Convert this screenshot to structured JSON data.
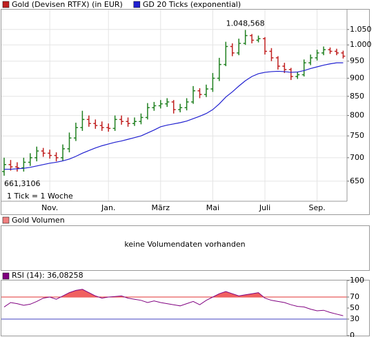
{
  "chart_data": [
    {
      "type": "ohlc",
      "categories": [
        null,
        null,
        null,
        null,
        null,
        null,
        null,
        "Nov.",
        null,
        null,
        null,
        null,
        null,
        null,
        null,
        null,
        "Jan.",
        null,
        null,
        null,
        null,
        null,
        null,
        null,
        "März",
        null,
        null,
        null,
        null,
        null,
        null,
        null,
        "Mai",
        null,
        null,
        null,
        null,
        null,
        null,
        null,
        "Juli",
        null,
        null,
        null,
        null,
        null,
        null,
        null,
        "Sep.",
        null,
        null,
        null,
        null
      ],
      "series": [
        {
          "name": "Gold (Devisen RTFX) (in EUR)",
          "color": "#c02020",
          "up_color": "#208020",
          "down_color": "#c02020",
          "open": [
            670,
            685,
            680,
            678,
            690,
            700,
            715,
            710,
            705,
            700,
            720,
            745,
            770,
            790,
            780,
            775,
            770,
            768,
            790,
            785,
            780,
            785,
            795,
            820,
            825,
            830,
            835,
            815,
            820,
            835,
            865,
            855,
            870,
            900,
            940,
            995,
            975,
            1005,
            1030,
            1015,
            1020,
            980,
            960,
            935,
            925,
            905,
            910,
            945,
            960,
            975,
            985,
            980,
            975
          ],
          "high": [
            700,
            695,
            690,
            700,
            710,
            725,
            722,
            718,
            712,
            730,
            758,
            782,
            812,
            800,
            790,
            785,
            780,
            800,
            800,
            795,
            795,
            805,
            832,
            835,
            840,
            845,
            840,
            830,
            845,
            878,
            872,
            882,
            915,
            960,
            1010,
            1005,
            1020,
            1048.568,
            1035,
            1030,
            1025,
            990,
            965,
            945,
            930,
            918,
            955,
            970,
            985,
            995,
            992,
            988,
            982
          ],
          "low": [
            661.3106,
            672,
            670,
            670,
            682,
            692,
            702,
            698,
            692,
            693,
            712,
            738,
            762,
            772,
            767,
            762,
            760,
            762,
            777,
            772,
            774,
            778,
            790,
            812,
            818,
            822,
            805,
            808,
            813,
            830,
            845,
            848,
            862,
            892,
            935,
            965,
            968,
            1000,
            1005,
            1008,
            970,
            950,
            925,
            915,
            895,
            898,
            905,
            938,
            952,
            968,
            972,
            968,
            958
          ],
          "close": [
            685,
            680,
            678,
            690,
            700,
            715,
            710,
            705,
            700,
            720,
            745,
            770,
            790,
            780,
            775,
            770,
            768,
            790,
            785,
            780,
            785,
            795,
            820,
            825,
            830,
            835,
            815,
            820,
            835,
            865,
            855,
            870,
            900,
            940,
            995,
            975,
            1005,
            1030,
            1015,
            1020,
            980,
            960,
            935,
            925,
            905,
            910,
            945,
            960,
            975,
            985,
            980,
            975,
            965
          ]
        },
        {
          "name": "GD 20 Ticks (exponential)",
          "color": "#2020d0",
          "type": "line",
          "values": [
            675,
            675,
            676,
            677,
            679,
            682,
            685,
            688,
            690,
            693,
            697,
            703,
            710,
            716,
            722,
            727,
            731,
            735,
            738,
            742,
            746,
            750,
            757,
            764,
            772,
            776,
            779,
            782,
            786,
            792,
            798,
            805,
            815,
            830,
            848,
            862,
            878,
            893,
            905,
            913,
            917,
            919,
            920,
            919,
            917,
            918,
            922,
            928,
            933,
            938,
            942,
            945,
            945
          ]
        }
      ],
      "high_label": "1.048,568",
      "low_label": "661,3106",
      "note": "1 Tick = 1 Woche",
      "log_scale": true,
      "grid": true,
      "ylim": [
        610,
        1118
      ],
      "yticks": [
        650,
        700,
        750,
        800,
        850,
        900,
        950,
        {
          "value": 1000,
          "label": "1.000"
        },
        {
          "value": 1050,
          "label": "1.050"
        }
      ]
    },
    {
      "type": "bar",
      "title": "Gold Volumen",
      "color": "#f08080",
      "message": "keine Volumendaten vorhanden"
    },
    {
      "type": "line",
      "series": [
        {
          "name": "RSI (14): 36,08258",
          "color": "#800080",
          "fill_color": "#f06060",
          "values": [
            52,
            60,
            58,
            55,
            57,
            62,
            68,
            70,
            66,
            72,
            78,
            82,
            84,
            78,
            72,
            68,
            70,
            71,
            72,
            68,
            66,
            64,
            60,
            63,
            60,
            58,
            56,
            54,
            58,
            62,
            56,
            64,
            70,
            76,
            80,
            76,
            72,
            74,
            76,
            78,
            68,
            64,
            62,
            60,
            56,
            53,
            52,
            48,
            45,
            46,
            42,
            39,
            36.08258
          ]
        }
      ],
      "ylim": [
        0,
        100
      ],
      "yticks": [
        0,
        30,
        50,
        70,
        100
      ],
      "levels": [
        {
          "value": 70,
          "color": "#e03030"
        },
        {
          "value": 30,
          "color": "#4040c0"
        }
      ]
    }
  ]
}
